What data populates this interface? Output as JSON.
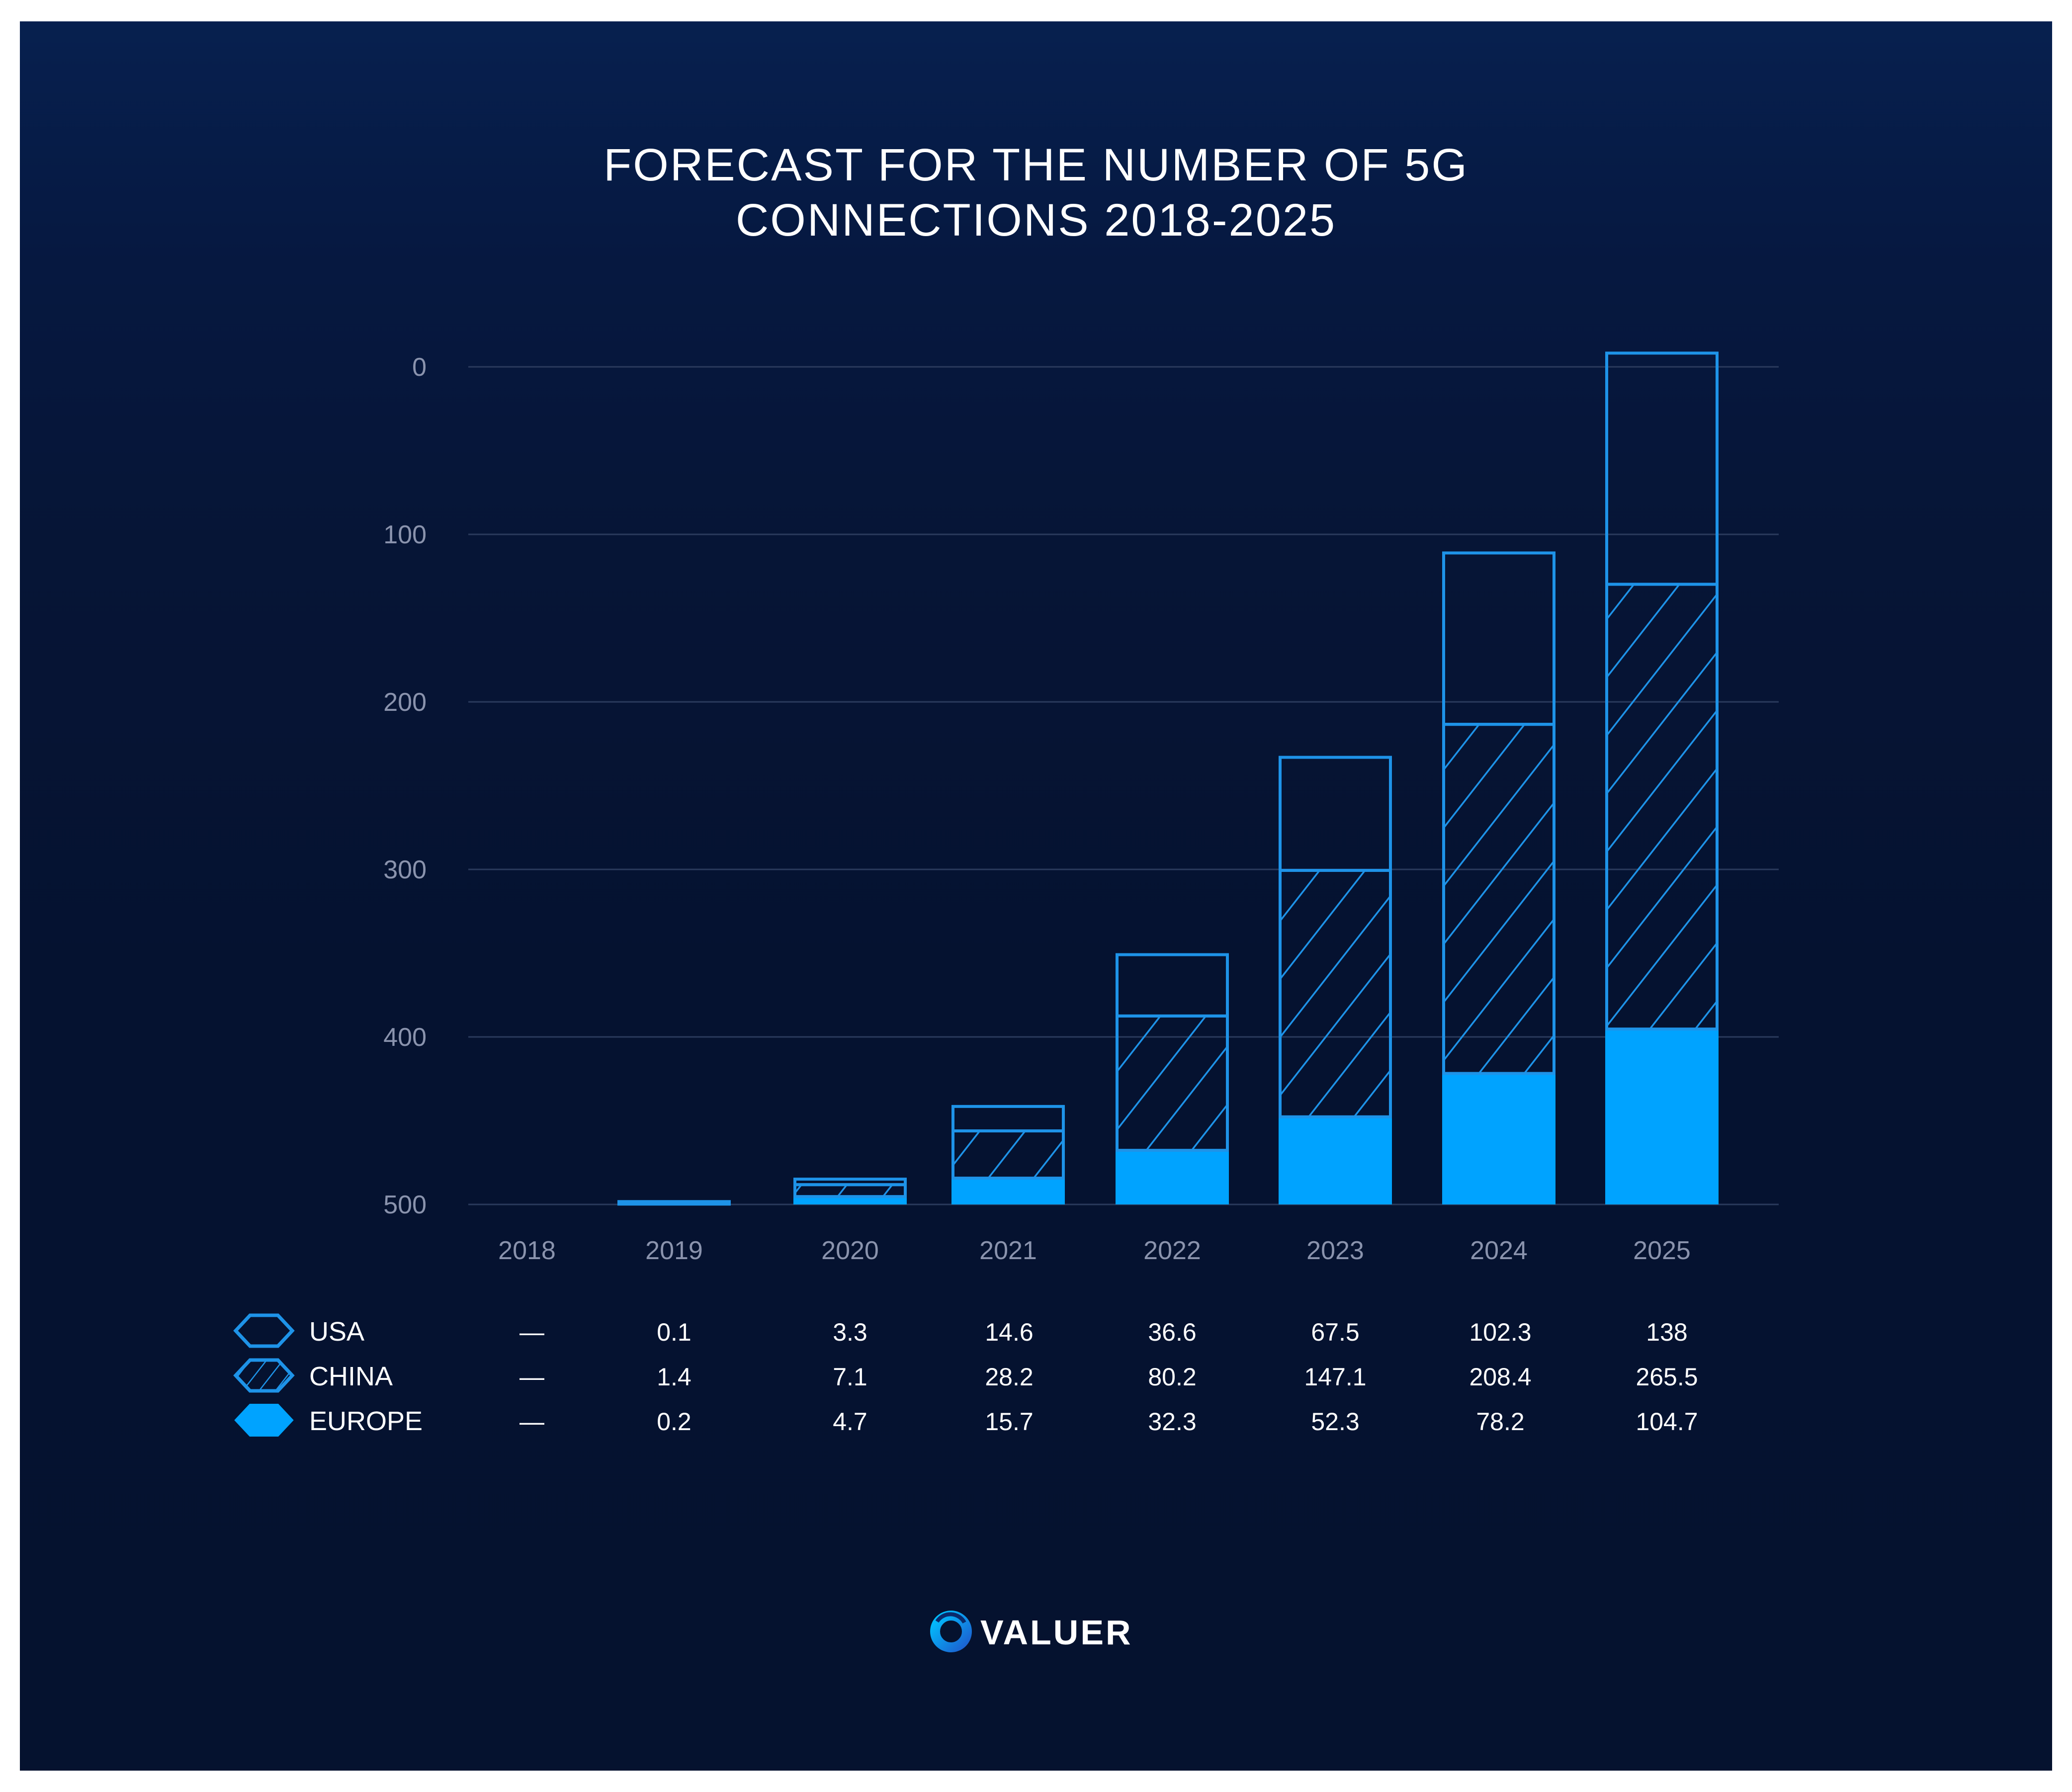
{
  "chart_data": {
    "type": "bar",
    "stacked": true,
    "title_lines": [
      "FORECAST FOR THE NUMBER OF 5G",
      "CONNECTIONS 2018-2025"
    ],
    "categories": [
      "2018",
      "2019",
      "2020",
      "2021",
      "2022",
      "2023",
      "2024",
      "2025"
    ],
    "y_ticks": [
      "0",
      "100",
      "200",
      "300",
      "400",
      "500"
    ],
    "ylim": [
      0,
      500
    ],
    "grid": true,
    "series": [
      {
        "name": "USA",
        "style": "outline",
        "values": [
          0,
          0.1,
          3.3,
          14.6,
          36.6,
          67.5,
          102.3,
          138
        ],
        "display": [
          "—",
          "0.1",
          "3.3",
          "14.6",
          "36.6",
          "67.5",
          "102.3",
          "138"
        ]
      },
      {
        "name": "CHINA",
        "style": "hatched",
        "values": [
          0,
          1.4,
          7.1,
          28.2,
          80.2,
          147.1,
          208.4,
          265.5
        ],
        "display": [
          "—",
          "1.4",
          "7.1",
          "28.2",
          "80.2",
          "147.1",
          "208.4",
          "265.5"
        ]
      },
      {
        "name": "EUROPE",
        "style": "solid",
        "values": [
          0,
          0.2,
          4.7,
          15.7,
          32.3,
          52.3,
          78.2,
          104.7
        ],
        "display": [
          "—",
          "0.2",
          "4.7",
          "15.7",
          "32.3",
          "52.3",
          "78.2",
          "104.7"
        ]
      }
    ],
    "colors": {
      "accent": "#00a3ff",
      "outline": "#1e93e8",
      "grid": "#2a3a5c",
      "tick": "#8a93ad"
    }
  },
  "brand": {
    "name": "VALUER"
  }
}
